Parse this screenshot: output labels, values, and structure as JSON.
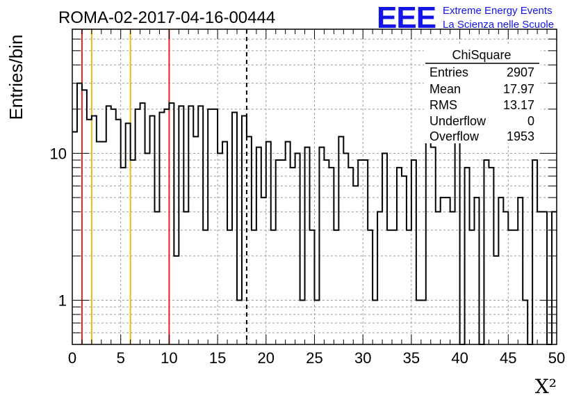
{
  "chart_data": {
    "type": "bar",
    "title": "ROMA-02-2017-04-16-00444",
    "xlabel": "X²",
    "ylabel": "Entries/bin",
    "xlim": [
      0,
      50
    ],
    "ylim": [
      0.5,
      70
    ],
    "log_y": true,
    "grid": true,
    "bin_width": 0.5,
    "values": [
      14,
      30,
      27,
      17,
      18,
      12,
      12,
      21,
      20,
      17,
      8,
      16,
      9,
      20,
      22,
      10,
      18,
      4,
      19,
      20,
      22,
      2,
      21,
      4,
      21,
      13,
      21,
      3,
      20,
      20,
      10,
      12,
      3,
      19,
      1,
      18,
      13,
      3,
      11,
      5,
      12,
      3,
      9,
      9,
      12,
      8,
      10,
      1,
      11,
      3,
      1,
      11,
      9,
      8,
      3,
      13,
      10,
      8,
      6,
      9,
      9,
      3,
      1,
      4,
      10,
      3,
      3,
      8,
      7,
      3,
      9,
      1,
      1,
      12,
      11,
      4,
      5,
      5,
      4,
      12,
      0.4,
      8,
      3,
      5,
      0.4,
      9,
      8,
      2,
      5,
      4,
      3,
      3,
      5,
      1,
      0.4,
      9,
      4,
      4,
      0.4,
      4
    ],
    "vertical_lines": [
      {
        "x": 1,
        "color": "#e8231c",
        "style": "solid"
      },
      {
        "x": 2,
        "color": "#f2b418",
        "style": "solid"
      },
      {
        "x": 6,
        "color": "#f2b418",
        "style": "solid"
      },
      {
        "x": 10,
        "color": "#e8231c",
        "style": "solid"
      },
      {
        "x": 18,
        "color": "#000000",
        "style": "dashed"
      }
    ],
    "x_ticks": [
      "0",
      "5",
      "10",
      "15",
      "20",
      "25",
      "30",
      "35",
      "40",
      "45",
      "50"
    ],
    "y_ticks": [
      "1",
      "10"
    ],
    "stats_box": {
      "title": "ChiSquare",
      "rows": [
        {
          "label": "Entries",
          "value": "2907"
        },
        {
          "label": "Mean",
          "value": "17.97"
        },
        {
          "label": "RMS",
          "value": "13.17"
        },
        {
          "label": "Underflow",
          "value": "0"
        },
        {
          "label": "Overflow",
          "value": "1953"
        }
      ]
    }
  },
  "logo": {
    "mark": "EEE",
    "line1": "Extreme Energy Events",
    "line2": "La Scienza nelle Scuole",
    "color": "#1414e6"
  }
}
